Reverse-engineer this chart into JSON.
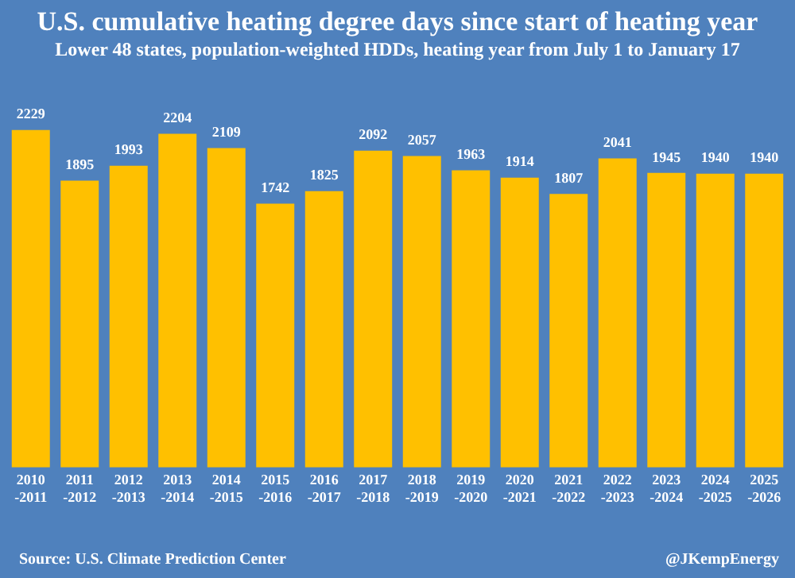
{
  "chart_data": {
    "type": "bar",
    "title": "U.S. cumulative heating degree days since start of heating year",
    "subtitle": "Lower 48 states, population-weighted HDDs, heating year from July 1 to January 17",
    "categories": [
      "2010\n-2011",
      "2011\n-2012",
      "2012\n-2013",
      "2013\n-2014",
      "2014\n-2015",
      "2015\n-2016",
      "2016\n-2017",
      "2017\n-2018",
      "2018\n-2019",
      "2019\n-2020",
      "2020\n-2021",
      "2021\n-2022",
      "2022\n-2023",
      "2023\n-2024",
      "2024\n-2025",
      "2025\n-2026"
    ],
    "values": [
      2229,
      1895,
      1993,
      2204,
      2109,
      1742,
      1825,
      2092,
      2057,
      1963,
      1914,
      1807,
      2041,
      1945,
      1940,
      1940
    ],
    "color": "#ffc000",
    "data_labels": true,
    "grid": false,
    "legend": false,
    "annotations": [
      "Source: U.S. Climate Prediction Center",
      "@JKempEnergy"
    ]
  }
}
